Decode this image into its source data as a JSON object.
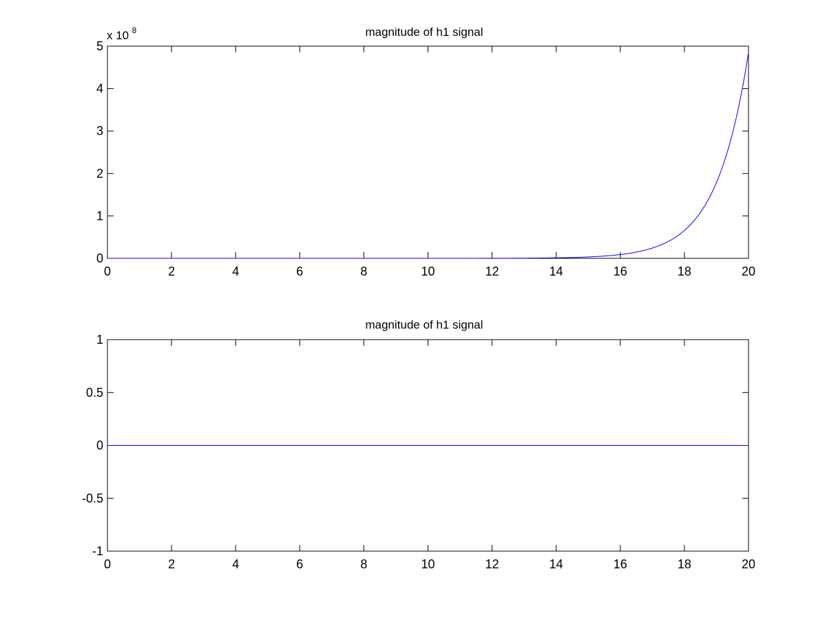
{
  "chart_data": [
    {
      "type": "line",
      "title": "magnitude of h1 signal",
      "xlabel": "",
      "ylabel": "",
      "xlim": [
        0,
        20
      ],
      "ylim": [
        0,
        5
      ],
      "y_exponent_base": "x 10",
      "y_exponent_power": "8",
      "x_ticks": [
        "0",
        "2",
        "4",
        "6",
        "8",
        "10",
        "12",
        "14",
        "16",
        "18",
        "20"
      ],
      "y_ticks": [
        "0",
        "1",
        "2",
        "3",
        "4",
        "5"
      ],
      "series": [
        {
          "color": "#0000ff",
          "function": "exp",
          "growth_rate": 1,
          "y_scale_factor": 1e-08,
          "x": [
            0,
            14,
            15,
            16,
            17,
            18,
            19,
            20
          ],
          "y": [
            0,
            0.012,
            0.033,
            0.089,
            0.242,
            0.657,
            1.785,
            4.852
          ]
        }
      ],
      "grid": false,
      "legend": "none"
    },
    {
      "type": "line",
      "title": "magnitude of h1 signal",
      "xlabel": "",
      "ylabel": "",
      "xlim": [
        0,
        20
      ],
      "ylim": [
        -1,
        1
      ],
      "x_ticks": [
        "0",
        "2",
        "4",
        "6",
        "8",
        "10",
        "12",
        "14",
        "16",
        "18",
        "20"
      ],
      "y_ticks": [
        "-1",
        "-0.5",
        "0",
        "0.5",
        "1"
      ],
      "series": [
        {
          "color": "#0000ff",
          "x": [
            0,
            20
          ],
          "y": [
            0,
            0
          ]
        }
      ],
      "grid": false,
      "legend": "none"
    }
  ]
}
